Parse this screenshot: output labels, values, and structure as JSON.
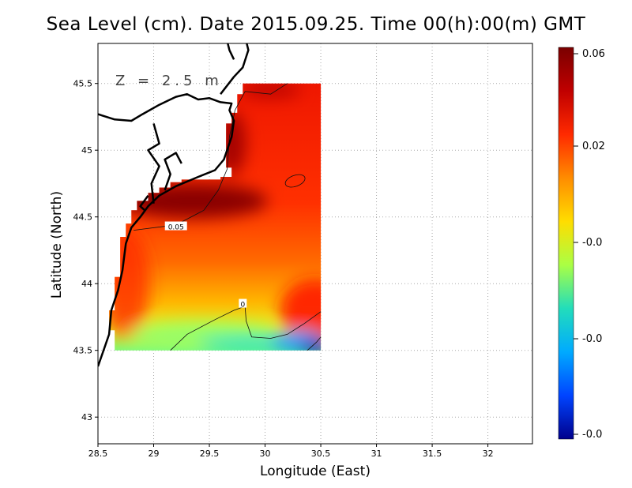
{
  "title": "Sea Level (cm). Date 2015.09.25. Time 00(h):00(m) GMT",
  "annotation": "Z = 2.5 m",
  "chart_data": {
    "type": "heatmap",
    "title": "Sea Level (cm). Date 2015.09.25. Time 00(h):00(m) GMT",
    "xlabel": "Longitude (East)",
    "ylabel": "Latitude (North)",
    "xlim": [
      28.5,
      32.4
    ],
    "ylim": [
      42.8,
      45.8
    ],
    "x_ticks": [
      "28.5",
      "29",
      "29.5",
      "30",
      "30.5",
      "31",
      "31.5",
      "32"
    ],
    "x_tick_values": [
      28.5,
      29,
      29.5,
      30,
      30.5,
      31,
      31.5,
      32
    ],
    "y_ticks": [
      "43",
      "43.5",
      "44",
      "44.5",
      "45",
      "45.5"
    ],
    "y_tick_values": [
      43,
      43.5,
      44,
      44.5,
      45,
      45.5
    ],
    "grid": true,
    "data_extent": {
      "lon": [
        28.6,
        30.5
      ],
      "lat": [
        43.5,
        45.5
      ]
    },
    "contour_labels": [
      {
        "text": "0.05",
        "lon": 29.2,
        "lat": 44.43
      },
      {
        "text": "0",
        "lon": 29.8,
        "lat": 43.85
      }
    ],
    "colorbar": {
      "labels": [
        "0.06",
        "0.02",
        "-0.0",
        "-0.0",
        "-0.0"
      ],
      "colors": [
        "#7a0000",
        "#c00000",
        "#ff2a00",
        "#ff8c00",
        "#ffdd00",
        "#aaff44",
        "#22ddbb",
        "#00aaff",
        "#0044ff",
        "#00008c"
      ]
    }
  }
}
